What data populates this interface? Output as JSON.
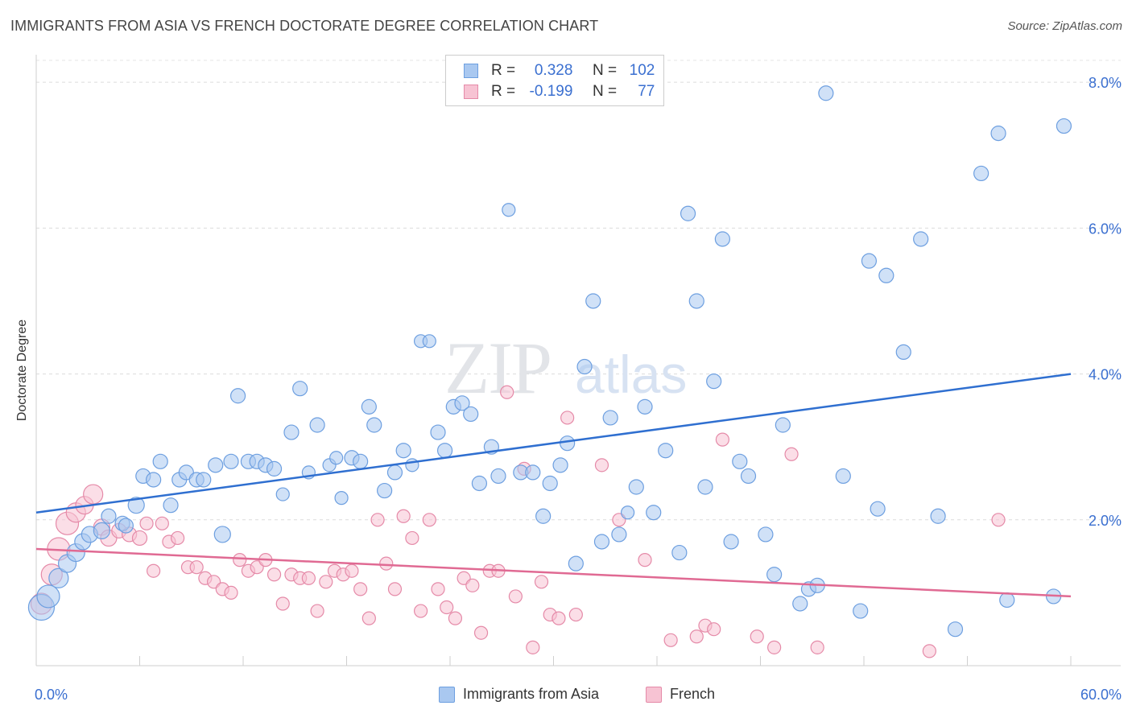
{
  "header": {
    "title": "IMMIGRANTS FROM ASIA VS FRENCH DOCTORATE DEGREE CORRELATION CHART",
    "source": "Source: ZipAtlas.com"
  },
  "watermark": {
    "zip": "ZIP",
    "atlas": "atlas"
  },
  "legend_stats": [
    {
      "r_label": "R =",
      "r_value": "0.328",
      "n_label": "N =",
      "n_value": "102",
      "color": "#a9c8f0",
      "border": "#6d9fe0"
    },
    {
      "r_label": "R =",
      "r_value": "-0.199",
      "n_label": "N =",
      "n_value": "77",
      "color": "#f7c3d3",
      "border": "#e58aa8"
    }
  ],
  "chart_data": {
    "type": "scatter",
    "title": "IMMIGRANTS FROM ASIA VS FRENCH DOCTORATE DEGREE CORRELATION CHART",
    "xlabel": "",
    "ylabel": "Doctorate Degree",
    "xlim": [
      0,
      60
    ],
    "ylim": [
      0,
      8.3
    ],
    "x_tick_labels": [
      "0.0%",
      "60.0%"
    ],
    "y_ticks": [
      2,
      4,
      6,
      8
    ],
    "y_tick_labels": [
      "2.0%",
      "4.0%",
      "6.0%",
      "8.0%"
    ],
    "grid": true,
    "legend_position": "top-center",
    "colors": {
      "blue": "#6d9fe0",
      "blue_fill": "#a9c8f0",
      "blue_line": "#2f6fd0",
      "pink": "#e58aa8",
      "pink_fill": "#f7c3d3",
      "pink_line": "#e06a93"
    },
    "series": [
      {
        "name": "Immigrants from Asia",
        "trend": {
          "x": [
            0,
            60
          ],
          "y": [
            2.1,
            4.0
          ]
        },
        "points": [
          [
            0.3,
            0.8,
            16
          ],
          [
            0.7,
            0.95,
            14
          ],
          [
            1.3,
            1.2,
            12
          ],
          [
            1.8,
            1.4,
            11
          ],
          [
            2.3,
            1.55,
            11
          ],
          [
            2.7,
            1.7,
            10
          ],
          [
            3.1,
            1.8,
            10
          ],
          [
            3.8,
            1.85,
            10
          ],
          [
            4.2,
            2.05,
            9
          ],
          [
            5.0,
            1.95,
            9
          ],
          [
            5.2,
            1.92,
            9
          ],
          [
            5.8,
            2.2,
            10
          ],
          [
            6.2,
            2.6,
            9
          ],
          [
            6.8,
            2.55,
            9
          ],
          [
            7.2,
            2.8,
            9
          ],
          [
            7.8,
            2.2,
            9
          ],
          [
            8.3,
            2.55,
            9
          ],
          [
            8.7,
            2.65,
            9
          ],
          [
            9.3,
            2.55,
            9
          ],
          [
            9.7,
            2.55,
            9
          ],
          [
            10.4,
            2.75,
            9
          ],
          [
            10.8,
            1.8,
            10
          ],
          [
            11.3,
            2.8,
            9
          ],
          [
            11.7,
            3.7,
            9
          ],
          [
            12.3,
            2.8,
            9
          ],
          [
            12.8,
            2.8,
            9
          ],
          [
            13.3,
            2.75,
            9
          ],
          [
            13.8,
            2.7,
            9
          ],
          [
            14.3,
            2.35,
            8
          ],
          [
            14.8,
            3.2,
            9
          ],
          [
            15.3,
            3.8,
            9
          ],
          [
            15.8,
            2.65,
            8
          ],
          [
            16.3,
            3.3,
            9
          ],
          [
            17.0,
            2.75,
            8
          ],
          [
            17.4,
            2.85,
            8
          ],
          [
            17.7,
            2.3,
            8
          ],
          [
            18.3,
            2.85,
            9
          ],
          [
            18.8,
            2.8,
            9
          ],
          [
            19.3,
            3.55,
            9
          ],
          [
            19.6,
            3.3,
            9
          ],
          [
            20.2,
            2.4,
            9
          ],
          [
            20.8,
            2.65,
            9
          ],
          [
            21.3,
            2.95,
            9
          ],
          [
            21.8,
            2.75,
            8
          ],
          [
            22.3,
            4.45,
            8
          ],
          [
            22.8,
            4.45,
            8
          ],
          [
            23.3,
            3.2,
            9
          ],
          [
            23.7,
            2.95,
            9
          ],
          [
            24.2,
            3.55,
            9
          ],
          [
            24.7,
            3.6,
            9
          ],
          [
            25.2,
            3.45,
            9
          ],
          [
            25.7,
            2.5,
            9
          ],
          [
            26.4,
            3.0,
            9
          ],
          [
            26.8,
            2.6,
            9
          ],
          [
            27.4,
            6.25,
            8
          ],
          [
            28.1,
            2.65,
            9
          ],
          [
            28.8,
            2.65,
            9
          ],
          [
            29.4,
            2.05,
            9
          ],
          [
            29.8,
            2.5,
            9
          ],
          [
            30.4,
            2.75,
            9
          ],
          [
            30.8,
            3.05,
            9
          ],
          [
            31.3,
            1.4,
            9
          ],
          [
            31.8,
            4.1,
            9
          ],
          [
            32.3,
            5.0,
            9
          ],
          [
            32.8,
            1.7,
            9
          ],
          [
            33.3,
            3.4,
            9
          ],
          [
            33.8,
            1.8,
            9
          ],
          [
            34.3,
            2.1,
            8
          ],
          [
            34.8,
            2.45,
            9
          ],
          [
            35.3,
            3.55,
            9
          ],
          [
            35.8,
            2.1,
            9
          ],
          [
            36.5,
            2.95,
            9
          ],
          [
            37.3,
            1.55,
            9
          ],
          [
            37.8,
            6.2,
            9
          ],
          [
            38.3,
            5.0,
            9
          ],
          [
            38.8,
            2.45,
            9
          ],
          [
            39.3,
            3.9,
            9
          ],
          [
            39.8,
            5.85,
            9
          ],
          [
            40.3,
            1.7,
            9
          ],
          [
            40.8,
            2.8,
            9
          ],
          [
            41.3,
            2.6,
            9
          ],
          [
            42.3,
            1.8,
            9
          ],
          [
            42.8,
            1.25,
            9
          ],
          [
            43.3,
            3.3,
            9
          ],
          [
            44.3,
            0.85,
            9
          ],
          [
            44.8,
            1.05,
            9
          ],
          [
            45.3,
            1.1,
            9
          ],
          [
            45.8,
            7.85,
            9
          ],
          [
            46.8,
            2.6,
            9
          ],
          [
            47.8,
            0.75,
            9
          ],
          [
            48.3,
            5.55,
            9
          ],
          [
            48.8,
            2.15,
            9
          ],
          [
            49.3,
            5.35,
            9
          ],
          [
            50.3,
            4.3,
            9
          ],
          [
            51.3,
            5.85,
            9
          ],
          [
            52.3,
            2.05,
            9
          ],
          [
            53.3,
            0.5,
            9
          ],
          [
            54.8,
            6.75,
            9
          ],
          [
            55.8,
            7.3,
            9
          ],
          [
            56.3,
            0.9,
            9
          ],
          [
            59.0,
            0.95,
            9
          ],
          [
            59.6,
            7.4,
            9
          ]
        ]
      },
      {
        "name": "French",
        "trend": {
          "x": [
            0,
            60
          ],
          "y": [
            1.6,
            0.95
          ]
        },
        "points": [
          [
            0.3,
            0.85,
            13
          ],
          [
            0.9,
            1.25,
            13
          ],
          [
            1.3,
            1.6,
            14
          ],
          [
            1.8,
            1.95,
            14
          ],
          [
            2.3,
            2.1,
            12
          ],
          [
            2.8,
            2.2,
            11
          ],
          [
            3.3,
            2.35,
            12
          ],
          [
            3.8,
            1.9,
            10
          ],
          [
            4.2,
            1.75,
            10
          ],
          [
            4.8,
            1.85,
            9
          ],
          [
            5.4,
            1.8,
            9
          ],
          [
            6.0,
            1.75,
            9
          ],
          [
            6.4,
            1.95,
            8
          ],
          [
            6.8,
            1.3,
            8
          ],
          [
            7.3,
            1.95,
            8
          ],
          [
            7.7,
            1.7,
            8
          ],
          [
            8.2,
            1.75,
            8
          ],
          [
            8.8,
            1.35,
            8
          ],
          [
            9.3,
            1.35,
            8
          ],
          [
            9.8,
            1.2,
            8
          ],
          [
            10.3,
            1.15,
            8
          ],
          [
            10.8,
            1.05,
            8
          ],
          [
            11.3,
            1.0,
            8
          ],
          [
            11.8,
            1.45,
            8
          ],
          [
            12.3,
            1.3,
            8
          ],
          [
            12.8,
            1.35,
            8
          ],
          [
            13.3,
            1.45,
            8
          ],
          [
            13.8,
            1.25,
            8
          ],
          [
            14.3,
            0.85,
            8
          ],
          [
            14.8,
            1.25,
            8
          ],
          [
            15.3,
            1.2,
            8
          ],
          [
            15.8,
            1.2,
            8
          ],
          [
            16.3,
            0.75,
            8
          ],
          [
            16.8,
            1.15,
            8
          ],
          [
            17.3,
            1.3,
            8
          ],
          [
            17.8,
            1.25,
            8
          ],
          [
            18.3,
            1.3,
            8
          ],
          [
            18.8,
            1.05,
            8
          ],
          [
            19.3,
            0.65,
            8
          ],
          [
            19.8,
            2.0,
            8
          ],
          [
            20.3,
            1.4,
            8
          ],
          [
            20.8,
            1.05,
            8
          ],
          [
            21.3,
            2.05,
            8
          ],
          [
            21.8,
            1.75,
            8
          ],
          [
            22.3,
            0.75,
            8
          ],
          [
            22.8,
            2.0,
            8
          ],
          [
            23.3,
            1.05,
            8
          ],
          [
            23.8,
            0.8,
            8
          ],
          [
            24.3,
            0.65,
            8
          ],
          [
            24.8,
            1.2,
            8
          ],
          [
            25.3,
            1.1,
            8
          ],
          [
            25.8,
            0.45,
            8
          ],
          [
            26.3,
            1.3,
            8
          ],
          [
            26.8,
            1.3,
            8
          ],
          [
            27.3,
            3.75,
            8
          ],
          [
            27.8,
            0.95,
            8
          ],
          [
            28.3,
            2.7,
            8
          ],
          [
            28.8,
            0.25,
            8
          ],
          [
            29.3,
            1.15,
            8
          ],
          [
            29.8,
            0.7,
            8
          ],
          [
            30.3,
            0.65,
            8
          ],
          [
            30.8,
            3.4,
            8
          ],
          [
            31.3,
            0.7,
            8
          ],
          [
            32.8,
            2.75,
            8
          ],
          [
            33.8,
            2.0,
            8
          ],
          [
            35.3,
            1.45,
            8
          ],
          [
            36.8,
            0.35,
            8
          ],
          [
            38.3,
            0.4,
            8
          ],
          [
            38.8,
            0.55,
            8
          ],
          [
            39.3,
            0.5,
            8
          ],
          [
            39.8,
            3.1,
            8
          ],
          [
            41.8,
            0.4,
            8
          ],
          [
            42.8,
            0.25,
            8
          ],
          [
            43.8,
            2.9,
            8
          ],
          [
            45.3,
            0.25,
            8
          ],
          [
            51.8,
            0.2,
            8
          ],
          [
            55.8,
            2.0,
            8
          ]
        ]
      }
    ]
  },
  "bottom_legend": [
    {
      "label": "Immigrants from Asia",
      "color": "#a9c8f0",
      "border": "#6d9fe0"
    },
    {
      "label": "French",
      "color": "#f7c3d3",
      "border": "#e58aa8"
    }
  ]
}
